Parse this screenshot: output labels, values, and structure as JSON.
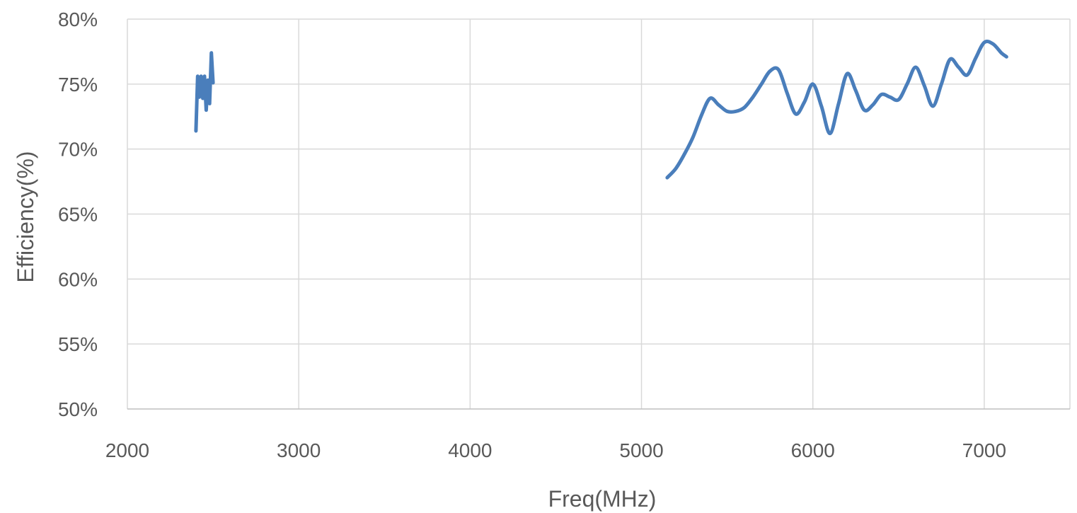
{
  "chart_data": {
    "type": "line",
    "xlabel": "Freq(MHz)",
    "ylabel": "Efficiency(%)",
    "xlim": [
      2000,
      7500
    ],
    "ylim": [
      50,
      80
    ],
    "x_ticks": [
      2000,
      3000,
      4000,
      5000,
      6000,
      7000
    ],
    "x_tick_labels": [
      "2000",
      "3000",
      "4000",
      "5000",
      "6000",
      "7000"
    ],
    "y_ticks": [
      50,
      55,
      60,
      65,
      70,
      75,
      80
    ],
    "y_tick_labels": [
      "50%",
      "55%",
      "60%",
      "65%",
      "70%",
      "75%",
      "80%"
    ],
    "grid": true,
    "legend": "none",
    "color": "#4a7ebb",
    "series": [
      {
        "x": [
          2400,
          2410,
          2420,
          2430,
          2440,
          2450,
          2460,
          2470,
          2480,
          2490,
          2500
        ],
        "values": [
          71.4,
          75.6,
          74.0,
          75.6,
          73.9,
          75.6,
          73.0,
          75.3,
          73.5,
          77.4,
          75.1
        ]
      },
      {
        "x": [
          5150,
          5200,
          5250,
          5300,
          5350,
          5400,
          5450,
          5500,
          5550,
          5600,
          5650,
          5700,
          5750,
          5800,
          5850,
          5900,
          5950,
          6000,
          6050,
          6100,
          6150,
          6200,
          6250,
          6300,
          6350,
          6400,
          6450,
          6500,
          6550,
          6600,
          6650,
          6700,
          6750,
          6800,
          6850,
          6900,
          6950,
          7000,
          7050,
          7100,
          7130
        ],
        "values": [
          67.8,
          68.5,
          69.6,
          70.9,
          72.6,
          73.9,
          73.4,
          72.9,
          72.9,
          73.2,
          74.0,
          75.0,
          76.0,
          76.1,
          74.3,
          72.7,
          73.6,
          75.0,
          73.3,
          71.2,
          73.5,
          75.8,
          74.5,
          73.0,
          73.4,
          74.2,
          74.0,
          73.8,
          75.0,
          76.3,
          74.9,
          73.3,
          75.0,
          76.9,
          76.3,
          75.7,
          77.0,
          78.2,
          78.1,
          77.4,
          77.1
        ]
      }
    ]
  }
}
